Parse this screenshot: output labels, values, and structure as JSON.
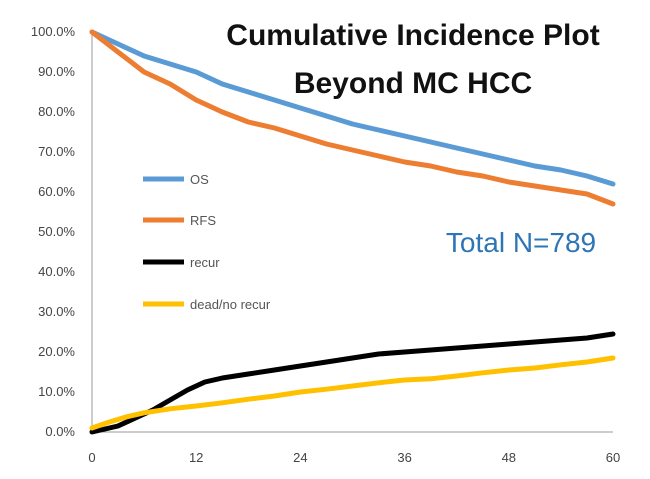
{
  "chart_data": {
    "type": "line",
    "title": [
      "Cumulative Incidence Plot",
      "Beyond MC HCC"
    ],
    "annotation": "Total N=789",
    "annotation_color": "#2e75b6",
    "xlabel": "",
    "ylabel": "",
    "xlim": [
      0,
      60
    ],
    "ylim": [
      0,
      100
    ],
    "x_ticks": [
      0,
      12,
      24,
      36,
      48,
      60
    ],
    "y_ticks": [
      0,
      10,
      20,
      30,
      40,
      50,
      60,
      70,
      80,
      90,
      100
    ],
    "y_tick_labels": [
      "0.0%",
      "10.0%",
      "20.0%",
      "30.0%",
      "40.0%",
      "50.0%",
      "60.0%",
      "70.0%",
      "80.0%",
      "90.0%",
      "100.0%"
    ],
    "grid": false,
    "legend_position": "left-middle",
    "series": [
      {
        "name": "OS",
        "color": "#5b9bd5",
        "x": [
          0,
          3,
          6,
          9,
          12,
          15,
          18,
          21,
          24,
          27,
          30,
          33,
          36,
          39,
          42,
          45,
          48,
          51,
          54,
          57,
          60
        ],
        "y": [
          100,
          97,
          94,
          92,
          90,
          87,
          85,
          83,
          81,
          79,
          77,
          75.5,
          74,
          72.5,
          71,
          69.5,
          68,
          66.5,
          65.5,
          64,
          62
        ]
      },
      {
        "name": "RFS",
        "color": "#ed7d31",
        "x": [
          0,
          3,
          6,
          9,
          12,
          15,
          18,
          21,
          24,
          27,
          30,
          33,
          36,
          39,
          42,
          45,
          48,
          51,
          54,
          57,
          60
        ],
        "y": [
          100,
          95,
          90,
          87,
          83,
          80,
          77.5,
          76,
          74,
          72,
          70.5,
          69,
          67.5,
          66.5,
          65,
          64,
          62.5,
          61.5,
          60.5,
          59.5,
          57
        ]
      },
      {
        "name": "recur",
        "color": "#000000",
        "x": [
          0,
          1,
          3,
          5,
          7,
          9,
          11,
          13,
          15,
          18,
          21,
          24,
          27,
          30,
          33,
          36,
          39,
          42,
          45,
          48,
          51,
          54,
          57,
          60
        ],
        "y": [
          0,
          0.5,
          1.5,
          3.5,
          5.5,
          8,
          10.5,
          12.5,
          13.5,
          14.5,
          15.5,
          16.5,
          17.5,
          18.5,
          19.5,
          20,
          20.5,
          21,
          21.5,
          22,
          22.5,
          23,
          23.5,
          24.5
        ]
      },
      {
        "name": "dead/no recur",
        "color": "#ffc000",
        "x": [
          0,
          2,
          4,
          6,
          9,
          12,
          15,
          18,
          21,
          24,
          27,
          30,
          33,
          36,
          39,
          42,
          45,
          48,
          51,
          54,
          57,
          60
        ],
        "y": [
          1,
          2.5,
          3.8,
          4.8,
          5.8,
          6.5,
          7.3,
          8.2,
          9,
          10,
          10.7,
          11.5,
          12.3,
          13,
          13.3,
          14,
          14.8,
          15.5,
          16,
          16.8,
          17.5,
          18.5
        ]
      }
    ]
  }
}
